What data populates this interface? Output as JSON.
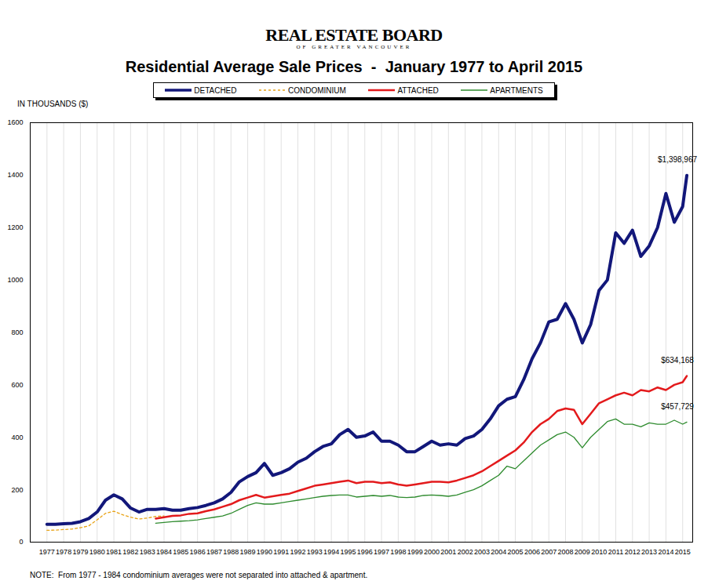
{
  "chart_data": {
    "type": "line",
    "header": [
      "REAL ESTATE BOARD",
      "OF GREATER VANCOUVER"
    ],
    "title": "Residential Average Sale Prices  -  January 1977 to April 2015",
    "ylabel": "IN THOUSANDS ($)",
    "note": "NOTE:  From 1977 - 1984 condominium averages were not separated into attached & apartment.",
    "legend": "top",
    "grid": "x",
    "xlim": [
      1976,
      2015.6
    ],
    "xticks": [
      1977,
      1978,
      1979,
      1980,
      1981,
      1982,
      1983,
      1984,
      1985,
      1986,
      1987,
      1988,
      1989,
      1990,
      1991,
      1992,
      1993,
      1994,
      1995,
      1996,
      1997,
      1998,
      1999,
      2000,
      2001,
      2002,
      2003,
      2004,
      2005,
      2006,
      2007,
      2008,
      2009,
      2010,
      2011,
      2012,
      2013,
      2014,
      2015
    ],
    "ylim": [
      0,
      1600
    ],
    "yticks": [
      0,
      200,
      400,
      600,
      800,
      1000,
      1200,
      1400,
      1600
    ],
    "x": [
      1977,
      1977.5,
      1978,
      1978.5,
      1979,
      1979.5,
      1980,
      1980.5,
      1981,
      1981.5,
      1982,
      1982.5,
      1983,
      1983.5,
      1984,
      1984.5,
      1985,
      1985.5,
      1986,
      1986.5,
      1987,
      1987.5,
      1988,
      1988.5,
      1989,
      1989.5,
      1990,
      1990.5,
      1991,
      1991.5,
      1992,
      1992.5,
      1993,
      1993.5,
      1994,
      1994.5,
      1995,
      1995.5,
      1996,
      1996.5,
      1997,
      1997.5,
      1998,
      1998.5,
      1999,
      1999.5,
      2000,
      2000.5,
      2001,
      2001.5,
      2002,
      2002.5,
      2003,
      2003.5,
      2004,
      2004.5,
      2005,
      2005.5,
      2006,
      2006.5,
      2007,
      2007.5,
      2008,
      2008.5,
      2009,
      2009.5,
      2010,
      2010.5,
      2011,
      2011.5,
      2012,
      2012.5,
      2013,
      2013.5,
      2014,
      2014.5,
      2015,
      2015.25
    ],
    "series": [
      {
        "name": "DETACHED",
        "color": "#12177a",
        "line_style": "solid",
        "values": [
          68,
          68,
          70,
          72,
          78,
          90,
          115,
          160,
          180,
          165,
          130,
          115,
          125,
          125,
          128,
          122,
          122,
          128,
          132,
          140,
          150,
          165,
          190,
          230,
          250,
          265,
          300,
          255,
          265,
          280,
          305,
          320,
          345,
          365,
          375,
          410,
          430,
          400,
          405,
          420,
          385,
          385,
          370,
          345,
          345,
          365,
          385,
          370,
          375,
          370,
          395,
          405,
          430,
          470,
          520,
          545,
          555,
          620,
          700,
          760,
          840,
          850,
          910,
          850,
          760,
          830,
          960,
          1000,
          1180,
          1140,
          1190,
          1090,
          1130,
          1200,
          1330,
          1220,
          1280,
          1398.967
        ]
      },
      {
        "name": "CONDOMINIUM",
        "color": "#e8a317",
        "line_style": "dashed",
        "values": [
          45,
          46,
          48,
          50,
          55,
          62,
          85,
          110,
          118,
          105,
          95,
          88,
          92,
          98,
          100,
          null,
          null,
          null,
          null,
          null,
          null,
          null,
          null,
          null,
          null,
          null,
          null,
          null,
          null,
          null,
          null,
          null,
          null,
          null,
          null,
          null,
          null,
          null,
          null,
          null,
          null,
          null,
          null,
          null,
          null,
          null,
          null,
          null,
          null,
          null,
          null,
          null,
          null,
          null,
          null,
          null,
          null,
          null,
          null,
          null,
          null,
          null,
          null,
          null,
          null,
          null,
          null,
          null,
          null,
          null,
          null,
          null,
          null,
          null,
          null,
          null,
          null,
          null
        ]
      },
      {
        "name": "ATTACHED",
        "color": "#e31a1c",
        "line_style": "solid",
        "values": [
          null,
          null,
          null,
          null,
          null,
          null,
          null,
          null,
          null,
          null,
          null,
          null,
          null,
          90,
          95,
          100,
          102,
          108,
          110,
          118,
          125,
          135,
          145,
          160,
          170,
          180,
          170,
          175,
          180,
          185,
          195,
          205,
          215,
          220,
          225,
          230,
          235,
          225,
          230,
          230,
          225,
          228,
          220,
          215,
          220,
          225,
          230,
          230,
          228,
          235,
          245,
          255,
          270,
          290,
          310,
          330,
          350,
          380,
          420,
          450,
          470,
          500,
          510,
          505,
          450,
          490,
          530,
          545,
          560,
          570,
          560,
          580,
          575,
          590,
          580,
          600,
          610,
          634.168
        ]
      },
      {
        "name": "APARTMENTS",
        "color": "#2e8b2e",
        "line_style": "solid",
        "values": [
          null,
          null,
          null,
          null,
          null,
          null,
          null,
          null,
          null,
          null,
          null,
          null,
          null,
          72,
          75,
          78,
          80,
          82,
          85,
          90,
          95,
          100,
          110,
          125,
          140,
          150,
          145,
          145,
          150,
          155,
          160,
          165,
          170,
          175,
          178,
          180,
          180,
          172,
          175,
          178,
          175,
          178,
          172,
          170,
          172,
          178,
          180,
          178,
          175,
          180,
          190,
          200,
          215,
          235,
          255,
          290,
          280,
          310,
          340,
          370,
          390,
          410,
          420,
          400,
          360,
          400,
          430,
          460,
          470,
          450,
          450,
          440,
          455,
          450,
          450,
          465,
          450,
          457.729
        ]
      }
    ],
    "annotations": [
      {
        "text": "$1,398,967",
        "series": "DETACHED"
      },
      {
        "text": "$634,168",
        "series": "ATTACHED"
      },
      {
        "text": "$457,729",
        "series": "APARTMENTS"
      }
    ]
  }
}
